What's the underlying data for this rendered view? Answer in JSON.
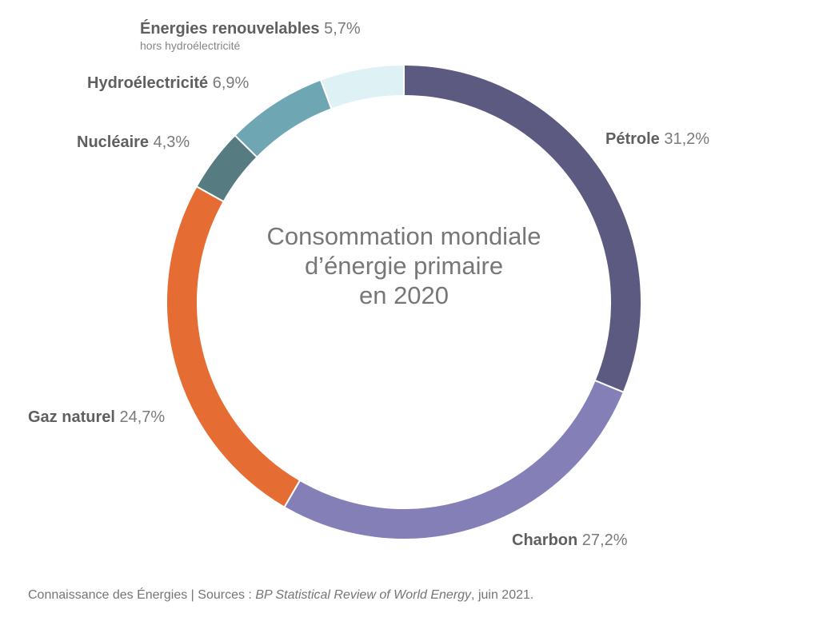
{
  "chart_data": {
    "type": "pie",
    "variant": "donut",
    "title_lines": [
      "Consommation mondiale",
      "d’énergie primaire",
      "en 2020"
    ],
    "unit": "%",
    "start": "top (12 o'clock), clockwise",
    "slices": [
      {
        "name": "Pétrole",
        "value": 31.2,
        "value_label": "31,2%",
        "color": "#5c5a80"
      },
      {
        "name": "Charbon",
        "value": 27.2,
        "value_label": "27,2%",
        "color": "#857fb8"
      },
      {
        "name": "Gaz naturel",
        "value": 24.7,
        "value_label": "24,7%",
        "color": "#e56d33"
      },
      {
        "name": "Nucléaire",
        "value": 4.3,
        "value_label": "4,3%",
        "color": "#567b80"
      },
      {
        "name": "Hydroélectricité",
        "value": 6.9,
        "value_label": "6,9%",
        "color": "#6fa6b3"
      },
      {
        "name": "Énergies renouvelables",
        "sublabel": "hors hydroélectricité",
        "value": 5.7,
        "value_label": "5,7%",
        "color": "#def2f6"
      }
    ],
    "legend": "none (direct labels around ring)"
  },
  "footer": {
    "prefix": "Connaissance des Énergies | Sources : ",
    "source_italic": "BP Statistical Review of World Energy",
    "suffix": ", juin 2021."
  }
}
